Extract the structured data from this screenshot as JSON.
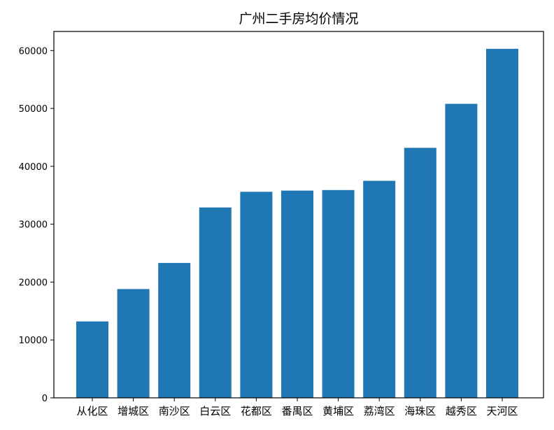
{
  "chart_data": {
    "type": "bar",
    "title": "广州二手房均价情况",
    "xlabel": "",
    "ylabel": "",
    "categories": [
      "从化区",
      "增城区",
      "南沙区",
      "白云区",
      "花都区",
      "番禺区",
      "黄埔区",
      "荔湾区",
      "海珠区",
      "越秀区",
      "天河区"
    ],
    "values": [
      13200,
      18800,
      23300,
      32900,
      35600,
      35800,
      35900,
      37500,
      43200,
      50800,
      60300
    ],
    "ylim": [
      0,
      63300
    ],
    "yticks": [
      0,
      10000,
      20000,
      30000,
      40000,
      50000,
      60000
    ],
    "grid": false,
    "bar_color": "#1f77b4"
  }
}
